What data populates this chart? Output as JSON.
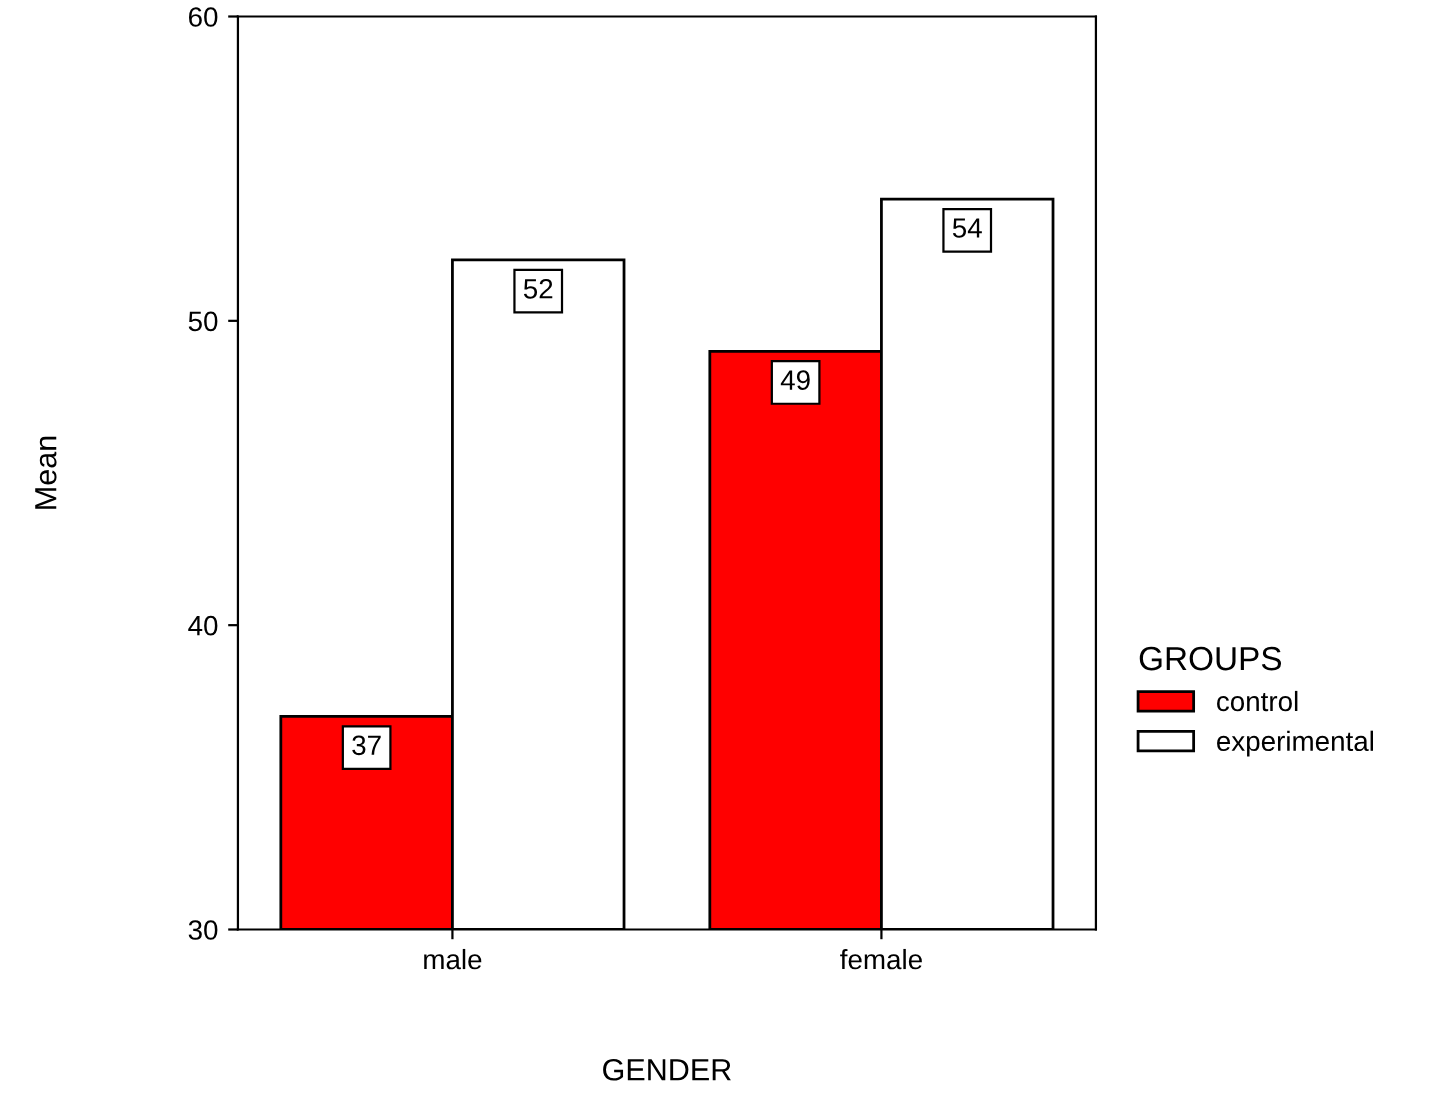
{
  "chart_data": {
    "type": "bar",
    "xlabel": "GENDER",
    "ylabel": "Mean",
    "legend_title": "GROUPS",
    "categories": [
      "male",
      "female"
    ],
    "series": [
      {
        "name": "control",
        "color": "#ff0000",
        "values": [
          37,
          49
        ]
      },
      {
        "name": "experimental",
        "color": "#ffffff",
        "values": [
          52,
          54
        ]
      }
    ],
    "ylim": [
      30,
      60
    ],
    "yticks": [
      30,
      40,
      50,
      60
    ],
    "grid": false,
    "legend": "right",
    "data_labels": true
  }
}
